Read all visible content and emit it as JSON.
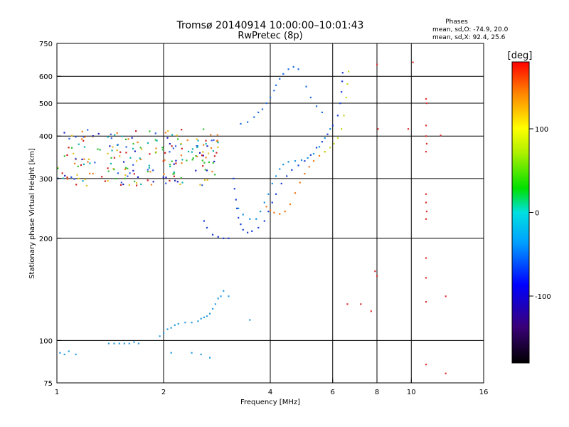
{
  "chart_data": {
    "type": "scatter",
    "title": "Tromsø 20140914 10:00:00–10:01:43",
    "subtitle": "RwPretec (8p)",
    "stats": {
      "title": "Phases",
      "line_o": "mean, sd,O: -74.9, 20.0",
      "line_x": "mean, sd,X:  92.4, 25.6"
    },
    "xlabel": "Frequency [MHz]",
    "ylabel": "Stationary phase Virtual Height [km]",
    "xscale": "log",
    "yscale": "log",
    "xlim": [
      1,
      16
    ],
    "ylim": [
      75,
      750
    ],
    "xticks": [
      {
        "v": 1,
        "label": "1"
      },
      {
        "v": 2,
        "label": "2"
      },
      {
        "v": 4,
        "label": "4"
      },
      {
        "v": 6,
        "label": "6"
      },
      {
        "v": 8,
        "label": "8"
      },
      {
        "v": 10,
        "label": "10"
      },
      {
        "v": 16,
        "label": "16"
      }
    ],
    "x_grid": [
      2,
      4,
      6,
      8,
      10
    ],
    "yticks": [
      {
        "v": 75,
        "label": "75"
      },
      {
        "v": 100,
        "label": "100"
      },
      {
        "v": 200,
        "label": "200"
      },
      {
        "v": 300,
        "label": "300"
      },
      {
        "v": 400,
        "label": "400"
      },
      {
        "v": 500,
        "label": "500"
      },
      {
        "v": 600,
        "label": "600"
      },
      {
        "v": 750,
        "label": "750"
      }
    ],
    "y_grid": [
      100,
      200,
      300,
      400,
      500,
      600
    ],
    "colorbar": {
      "label": "[deg]",
      "range": [
        -180,
        180
      ],
      "ticks": [
        {
          "v": 100,
          "label": "100"
        },
        {
          "v": 0,
          "label": "0"
        },
        {
          "v": -100,
          "label": "-100"
        }
      ]
    },
    "series": [
      {
        "name": "E-region low traces",
        "color": "#2a9ce0",
        "points": [
          [
            1.02,
            92
          ],
          [
            1.05,
            91
          ],
          [
            1.08,
            93
          ],
          [
            1.13,
            91
          ],
          [
            1.4,
            98
          ],
          [
            1.45,
            98
          ],
          [
            1.5,
            98
          ],
          [
            1.55,
            98
          ],
          [
            1.6,
            98
          ],
          [
            1.65,
            99
          ],
          [
            1.7,
            98
          ],
          [
            1.95,
            103
          ],
          [
            2.0,
            105
          ],
          [
            2.05,
            108
          ],
          [
            2.1,
            109
          ],
          [
            2.15,
            111
          ],
          [
            2.2,
            112
          ],
          [
            2.3,
            113
          ],
          [
            2.4,
            113
          ],
          [
            2.5,
            114
          ],
          [
            2.55,
            116
          ],
          [
            2.6,
            117
          ],
          [
            2.65,
            118
          ],
          [
            2.7,
            120
          ],
          [
            2.75,
            124
          ],
          [
            2.8,
            128
          ],
          [
            2.85,
            133
          ],
          [
            2.9,
            135
          ],
          [
            2.95,
            140
          ],
          [
            3.05,
            135
          ],
          [
            3.5,
            115
          ],
          [
            2.1,
            92
          ],
          [
            2.4,
            92
          ],
          [
            2.55,
            91
          ],
          [
            2.7,
            89
          ]
        ]
      },
      {
        "name": "Sporadic-E spread (multicolor)",
        "color": "#3a3ad8",
        "colors": [
          "#2020c0",
          "#3060e0",
          "#10b0b0",
          "#30c030",
          "#e0c020",
          "#f08020",
          "#d02020"
        ],
        "spread": {
          "x_ranges": [
            [
              1.0,
              1.75
            ],
            [
              1.8,
              2.85
            ]
          ],
          "y_range": [
            285,
            420
          ],
          "count": 230
        }
      },
      {
        "name": "F2 ordinary low",
        "color": "#1a40d8",
        "points": [
          [
            2.6,
            225
          ],
          [
            2.65,
            215
          ],
          [
            2.75,
            205
          ],
          [
            2.85,
            202
          ],
          [
            2.95,
            200
          ],
          [
            3.05,
            200
          ],
          [
            3.15,
            300
          ],
          [
            3.17,
            280
          ],
          [
            3.2,
            260
          ],
          [
            3.22,
            245
          ],
          [
            3.25,
            230
          ],
          [
            3.3,
            220
          ],
          [
            3.35,
            212
          ],
          [
            3.45,
            208
          ],
          [
            3.55,
            210
          ],
          [
            3.7,
            215
          ],
          [
            3.85,
            225
          ],
          [
            3.95,
            240
          ],
          [
            4.05,
            255
          ],
          [
            4.15,
            270
          ],
          [
            4.3,
            290
          ],
          [
            4.45,
            305
          ],
          [
            4.6,
            318
          ],
          [
            4.8,
            328
          ],
          [
            5.0,
            338
          ],
          [
            5.2,
            352
          ],
          [
            5.4,
            370
          ],
          [
            5.6,
            385
          ],
          [
            5.8,
            405
          ],
          [
            6.0,
            430
          ],
          [
            6.2,
            460
          ],
          [
            6.3,
            500
          ],
          [
            6.35,
            540
          ],
          [
            6.38,
            580
          ],
          [
            6.4,
            615
          ]
        ]
      },
      {
        "name": "F2 ordinary trace",
        "color": "#1890e0",
        "points": [
          [
            3.25,
            245
          ],
          [
            3.35,
            235
          ],
          [
            3.5,
            228
          ],
          [
            3.65,
            228
          ],
          [
            3.75,
            240
          ],
          [
            3.85,
            255
          ],
          [
            3.95,
            270
          ],
          [
            4.05,
            290
          ],
          [
            4.15,
            305
          ],
          [
            4.25,
            320
          ],
          [
            4.35,
            330
          ],
          [
            4.5,
            336
          ],
          [
            4.7,
            338
          ],
          [
            4.9,
            340
          ],
          [
            5.1,
            345
          ],
          [
            5.3,
            355
          ],
          [
            5.5,
            372
          ],
          [
            5.7,
            395
          ],
          [
            5.9,
            420
          ]
        ]
      },
      {
        "name": "F2 extraordinary trace",
        "color": "#f07818",
        "points": [
          [
            3.9,
            248
          ],
          [
            4.0,
            242
          ],
          [
            4.1,
            238
          ],
          [
            4.25,
            236
          ],
          [
            4.4,
            240
          ],
          [
            4.55,
            252
          ],
          [
            4.7,
            272
          ],
          [
            4.85,
            292
          ],
          [
            5.0,
            310
          ],
          [
            5.15,
            325
          ],
          [
            5.3,
            338
          ],
          [
            5.5,
            350
          ],
          [
            5.7,
            360
          ]
        ]
      },
      {
        "name": "F2 extraordinary upper",
        "color": "#c8d820",
        "points": [
          [
            5.7,
            360
          ],
          [
            5.9,
            370
          ],
          [
            6.05,
            380
          ],
          [
            6.2,
            395
          ],
          [
            6.35,
            420
          ],
          [
            6.45,
            460
          ],
          [
            6.55,
            520
          ],
          [
            6.6,
            570
          ],
          [
            6.65,
            620
          ]
        ]
      },
      {
        "name": "Upper trace",
        "color": "#1a6ee0",
        "points": [
          [
            3.3,
            435
          ],
          [
            3.45,
            440
          ],
          [
            3.6,
            455
          ],
          [
            3.7,
            470
          ],
          [
            3.8,
            480
          ],
          [
            3.9,
            500
          ],
          [
            4.0,
            520
          ],
          [
            4.1,
            545
          ],
          [
            4.15,
            565
          ],
          [
            4.25,
            590
          ],
          [
            4.35,
            610
          ],
          [
            4.5,
            630
          ],
          [
            4.65,
            640
          ],
          [
            4.8,
            630
          ],
          [
            5.05,
            560
          ],
          [
            5.2,
            520
          ],
          [
            5.4,
            490
          ],
          [
            5.6,
            470
          ]
        ]
      },
      {
        "name": "Isolated points",
        "color": "#e03030",
        "points": [
          [
            6.6,
            128
          ],
          [
            7.2,
            128
          ],
          [
            7.7,
            122
          ],
          [
            7.9,
            160
          ],
          [
            8.0,
            155
          ],
          [
            8.05,
            420
          ],
          [
            8.0,
            650
          ],
          [
            9.8,
            420
          ],
          [
            10.1,
            660
          ],
          [
            11.0,
            515
          ],
          [
            11.05,
            500
          ],
          [
            11.0,
            430
          ],
          [
            11.0,
            400
          ],
          [
            11.05,
            380
          ],
          [
            11.0,
            360
          ],
          [
            11.0,
            270
          ],
          [
            11.0,
            255
          ],
          [
            11.05,
            240
          ],
          [
            11.0,
            228
          ],
          [
            11.0,
            175
          ],
          [
            11.0,
            153
          ],
          [
            11.0,
            130
          ],
          [
            11.0,
            85
          ],
          [
            12.1,
            402
          ],
          [
            12.5,
            135
          ],
          [
            12.5,
            80
          ]
        ]
      }
    ]
  }
}
